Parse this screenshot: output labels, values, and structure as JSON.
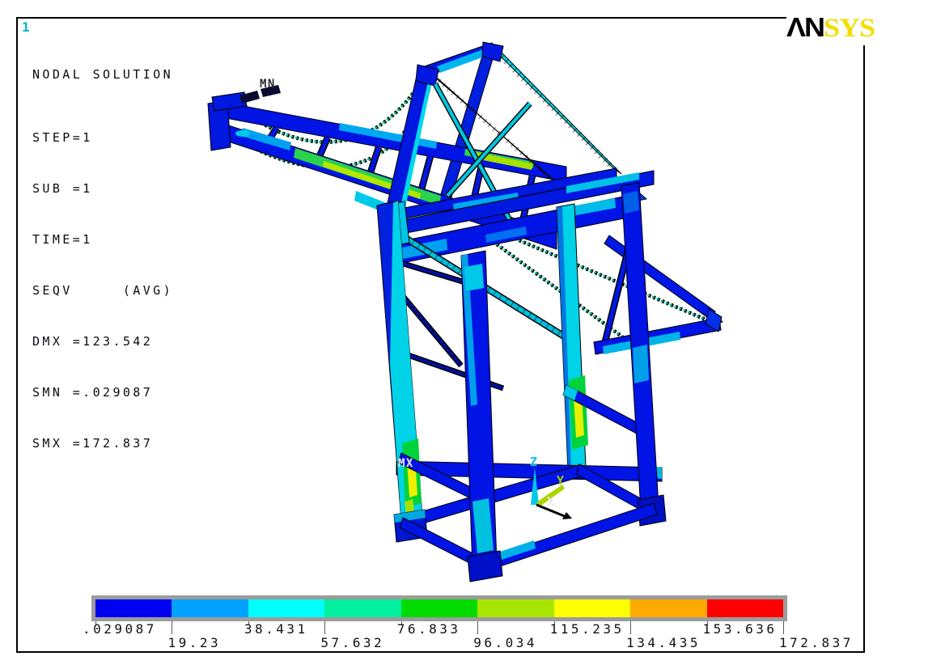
{
  "plot_number": "1",
  "logo": {
    "black": "ΛN",
    "yellow": "SYS"
  },
  "annotation": {
    "title": "NODAL SOLUTION",
    "lines": [
      "STEP=1",
      "SUB =1",
      "TIME=1",
      "SEQV     (AVG)",
      "DMX =123.542",
      "SMN =.029087",
      "SMX =172.837"
    ]
  },
  "model": {
    "min_label": "MN",
    "max_label": "MX"
  },
  "triad": {
    "x": "X",
    "y": "Y",
    "z": "Z"
  },
  "legend": {
    "values": [
      ".029087",
      "19.23",
      "38.431",
      "57.632",
      "76.833",
      "96.034",
      "115.235",
      "134.435",
      "153.636",
      "172.837"
    ],
    "colors": [
      "#0000f0",
      "#00a2ff",
      "#00ffff",
      "#00f0a0",
      "#00dc00",
      "#a8e600",
      "#ffff00",
      "#ffaa00",
      "#ff0000"
    ],
    "frame_color": "#9c9c9c"
  },
  "colors": {
    "member_blue": "#0014e6",
    "member_cyan": "#00d2e8",
    "hotspot_green": "#00d23c",
    "hotspot_yellow": "#eef000",
    "background": "#ffffff"
  }
}
